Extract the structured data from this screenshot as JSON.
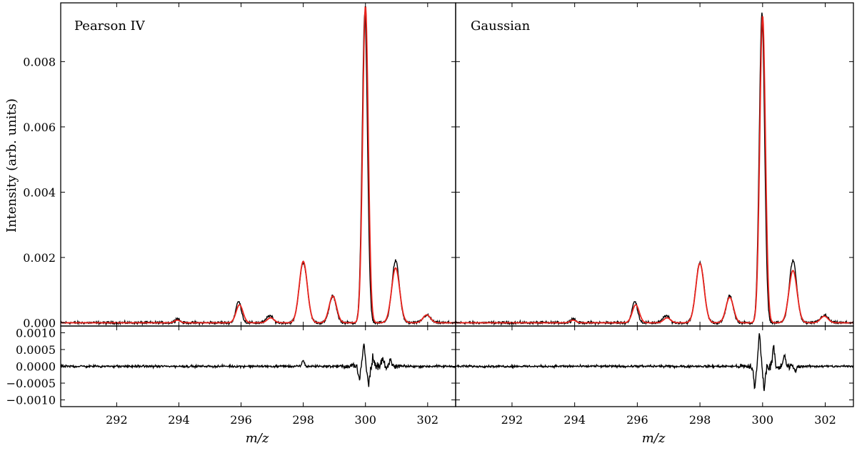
{
  "chart_data": {
    "type": "line",
    "xlabel": "m/z",
    "ylabel": "Intensity (arb. units)",
    "xlim": [
      290.2,
      302.9
    ],
    "x_ticks": [
      292,
      294,
      296,
      298,
      300,
      302
    ],
    "top_ylim": [
      -0.0001,
      0.0098
    ],
    "top_y_ticks": [
      "0.000",
      "0.002",
      "0.004",
      "0.006",
      "0.008"
    ],
    "top_y_values": [
      0.0,
      0.002,
      0.004,
      0.006,
      0.008
    ],
    "bottom_ylim": [
      -0.0012,
      0.0012
    ],
    "bottom_y_ticks": [
      "−0.0010",
      "−0.0005",
      "0.0000",
      "0.0005",
      "0.0010"
    ],
    "bottom_y_values": [
      -0.001,
      -0.0005,
      0.0,
      0.0005,
      0.001
    ],
    "noise_amplitude": 4e-05,
    "colors": {
      "data": "#000000",
      "fit": "#e8231d"
    },
    "data_peaks": [
      {
        "x": 293.95,
        "height": 0.00012,
        "width": 0.08
      },
      {
        "x": 295.92,
        "height": 0.00065,
        "width": 0.09
      },
      {
        "x": 296.92,
        "height": 0.00022,
        "width": 0.1
      },
      {
        "x": 298.0,
        "height": 0.00185,
        "width": 0.13
      },
      {
        "x": 298.95,
        "height": 0.00082,
        "width": 0.11
      },
      {
        "x": 299.98,
        "height": 0.0095,
        "width": 0.085
      },
      {
        "x": 300.97,
        "height": 0.0019,
        "width": 0.12
      },
      {
        "x": 301.97,
        "height": 0.00023,
        "width": 0.12
      }
    ],
    "panels": [
      {
        "title": "Pearson IV",
        "fit_peaks": [
          {
            "x": 293.95,
            "height": 8e-05,
            "width": 0.09
          },
          {
            "x": 295.95,
            "height": 0.00055,
            "width": 0.11
          },
          {
            "x": 296.95,
            "height": 0.00015,
            "width": 0.11
          },
          {
            "x": 298.0,
            "height": 0.00188,
            "width": 0.13
          },
          {
            "x": 298.95,
            "height": 0.00082,
            "width": 0.12
          },
          {
            "x": 300.0,
            "height": 0.0097,
            "width": 0.09
          },
          {
            "x": 300.97,
            "height": 0.00168,
            "width": 0.13
          },
          {
            "x": 301.97,
            "height": 0.00024,
            "width": 0.12
          }
        ],
        "residual_features": [
          {
            "x": 298.0,
            "amp": 0.00018
          },
          {
            "x": 299.8,
            "amp": -0.0004
          },
          {
            "x": 299.95,
            "amp": 0.0007
          },
          {
            "x": 300.1,
            "amp": -0.0005
          },
          {
            "x": 300.25,
            "amp": 0.0003
          },
          {
            "x": 300.55,
            "amp": 0.00025
          },
          {
            "x": 300.8,
            "amp": 0.00018
          }
        ]
      },
      {
        "title": "Gaussian",
        "fit_peaks": [
          {
            "x": 293.95,
            "height": 8e-05,
            "width": 0.09
          },
          {
            "x": 295.95,
            "height": 0.00055,
            "width": 0.11
          },
          {
            "x": 296.95,
            "height": 0.00015,
            "width": 0.11
          },
          {
            "x": 298.0,
            "height": 0.00182,
            "width": 0.13
          },
          {
            "x": 298.95,
            "height": 0.00078,
            "width": 0.12
          },
          {
            "x": 300.0,
            "height": 0.0094,
            "width": 0.09
          },
          {
            "x": 300.97,
            "height": 0.0016,
            "width": 0.13
          },
          {
            "x": 301.97,
            "height": 0.0002,
            "width": 0.12
          }
        ],
        "residual_features": [
          {
            "x": 299.75,
            "amp": -0.0006
          },
          {
            "x": 299.9,
            "amp": 0.00095
          },
          {
            "x": 300.05,
            "amp": -0.0006
          },
          {
            "x": 300.35,
            "amp": 0.0006
          },
          {
            "x": 300.7,
            "amp": 0.0003
          },
          {
            "x": 301.05,
            "amp": -0.00015
          }
        ]
      }
    ]
  }
}
